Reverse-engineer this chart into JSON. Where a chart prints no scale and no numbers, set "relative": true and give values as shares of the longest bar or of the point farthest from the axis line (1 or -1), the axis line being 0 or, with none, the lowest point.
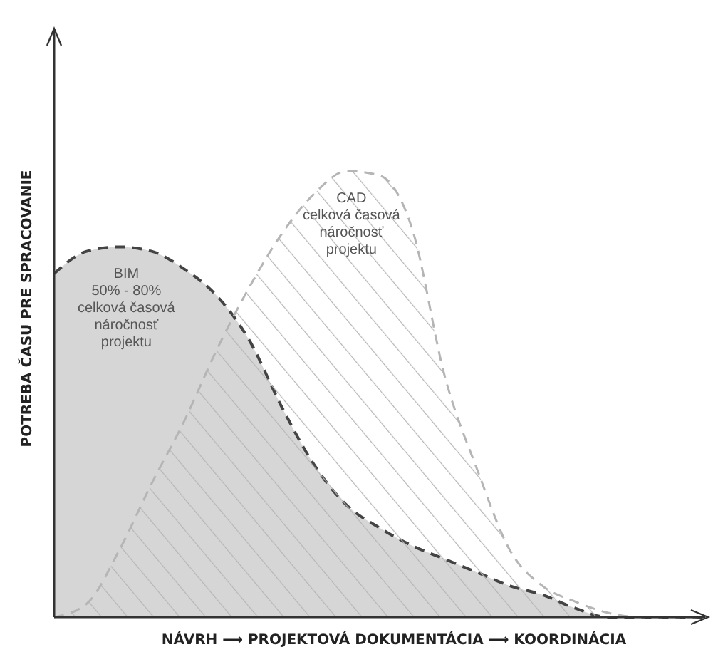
{
  "chart_data": {
    "type": "area",
    "relative": true,
    "xlabel": "NÁVRH ⟶ PROJEKTOVÁ DOKUMENTÁCIA ⟶ KOORDINÁCIA",
    "ylabel": "POTREBA ČASU PRE SPRACOVANIE",
    "categories": [
      null,
      null,
      null,
      null,
      null,
      null,
      null,
      null,
      null,
      null,
      null,
      null,
      null,
      null,
      null,
      null,
      null,
      null,
      null,
      null,
      null
    ],
    "line_style": "dashed",
    "series": [
      {
        "color": "#d6d6d6",
        "values": [
          0.77,
          0.82,
          0.83,
          0.82,
          0.78,
          0.72,
          0.62,
          0.47,
          0.34,
          0.25,
          0.2,
          0.16,
          0.13,
          0.1,
          0.07,
          0.05,
          0.02,
          0,
          0,
          0,
          0
        ]
      },
      {
        "color": "#b5b5b5",
        "values": [
          0,
          0.03,
          0.15,
          0.3,
          0.44,
          0.6,
          0.74,
          0.86,
          0.95,
          1,
          0.99,
          0.87,
          0.54,
          0.33,
          0.15,
          0.07,
          0.035,
          0.01,
          0,
          0,
          0
        ]
      }
    ],
    "annotations": [
      "BIM\n50% - 80%\ncelková časová\nnáročnosť\nprojektu",
      "CAD\ncelková časová\nnáročnosť\nprojektu"
    ]
  }
}
